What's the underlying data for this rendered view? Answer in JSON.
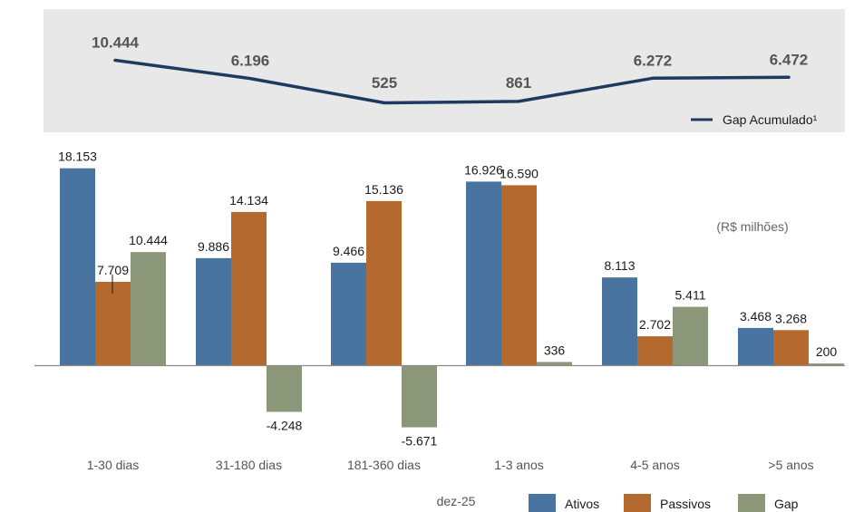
{
  "chart_data": [
    {
      "type": "line",
      "categories": [
        "1-30 dias",
        "31-180 dias",
        "181-360 dias",
        "1-3 anos",
        "4-5 anos",
        ">5 anos"
      ],
      "series": [
        {
          "name": "Gap Acumulado¹",
          "values": [
            10444,
            6196,
            525,
            861,
            6272,
            6472
          ],
          "labels": [
            "10.444",
            "6.196",
            "525",
            "861",
            "6.272",
            "6.472"
          ]
        }
      ],
      "legend_position": "bottom-right"
    },
    {
      "type": "bar",
      "categories": [
        "1-30 dias",
        "31-180 dias",
        "181-360 dias",
        "1-3 anos",
        "4-5 anos",
        ">5 anos"
      ],
      "series": [
        {
          "name": "Ativos",
          "values": [
            18153,
            9886,
            9466,
            16926,
            8113,
            3468
          ],
          "labels": [
            "18.153",
            "9.886",
            "9.466",
            "16.926",
            "8.113",
            "3.468"
          ]
        },
        {
          "name": "Passivos",
          "values": [
            7709,
            14134,
            15136,
            16590,
            2702,
            3268
          ],
          "labels": [
            "7.709",
            "14.134",
            "15.136",
            "16.590",
            "2.702",
            "3.268"
          ]
        },
        {
          "name": "Gap",
          "values": [
            10444,
            -4248,
            -5671,
            336,
            5411,
            200
          ],
          "labels": [
            "10.444",
            "-4.248",
            "-5.671",
            "336",
            "5.411",
            "200"
          ]
        }
      ],
      "note": "(R$ milhões)",
      "period": "dez-25",
      "legend_position": "bottom"
    }
  ],
  "colors": {
    "ativos": "#4a74a0",
    "passivos": "#b46a2e",
    "gap": "#8c9678",
    "line": "#1f3a5f",
    "panel": "#e8e8e8",
    "axis": "#8a8a8a"
  }
}
